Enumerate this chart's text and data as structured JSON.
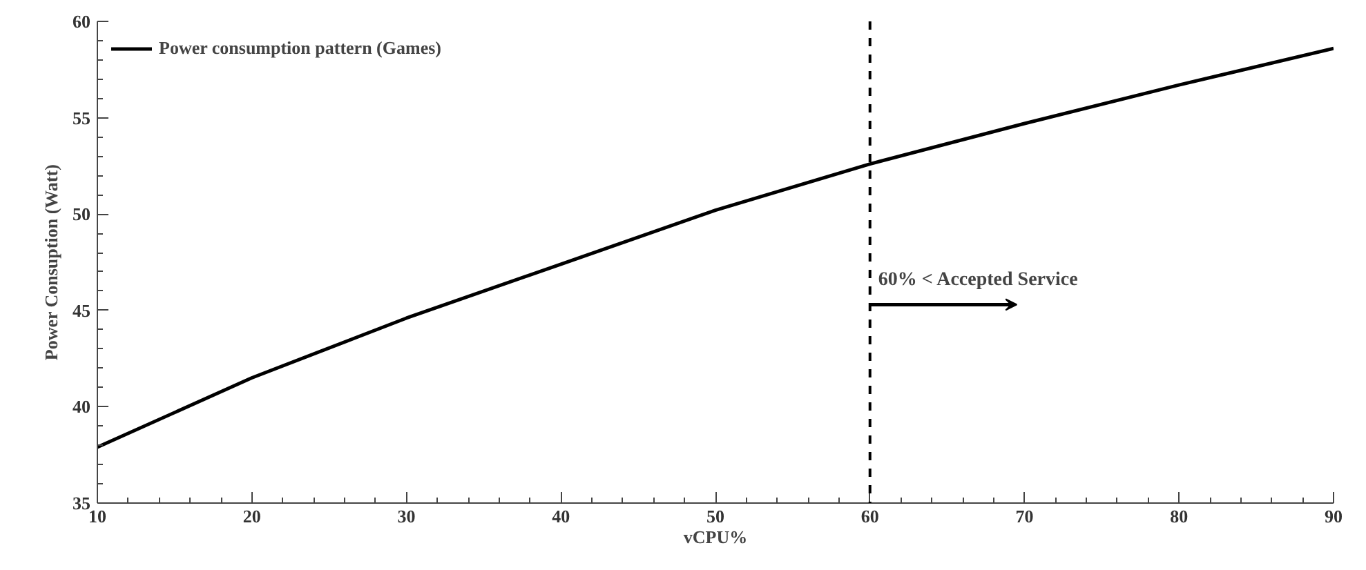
{
  "chart_data": {
    "type": "line",
    "xlabel": "vCPU%",
    "ylabel": "Power Consuption (Watt)",
    "x": [
      10,
      20,
      30,
      40,
      50,
      60,
      70,
      80,
      90
    ],
    "series": [
      {
        "name": "Power consumption pattern (Games)",
        "color": "#000000",
        "values": [
          37.9,
          41.5,
          44.6,
          47.4,
          50.2,
          52.6,
          54.7,
          56.7,
          58.6
        ]
      }
    ],
    "xlim": [
      10,
      90
    ],
    "xticks": [
      10,
      20,
      30,
      40,
      50,
      60,
      70,
      80,
      90
    ],
    "ylim": [
      35,
      60
    ],
    "yticks": [
      35,
      40,
      45,
      50,
      55,
      60
    ],
    "ref_lines": [
      {
        "axis": "x",
        "value": 60,
        "label": null,
        "line_style": "dashed",
        "color": "#000000"
      }
    ],
    "annotations": [
      {
        "text": "60% < Accepted Service",
        "x": 60,
        "y": 45.3
      }
    ],
    "grid": false,
    "legend": "top left",
    "marker": "none",
    "line_style": "solid"
  }
}
